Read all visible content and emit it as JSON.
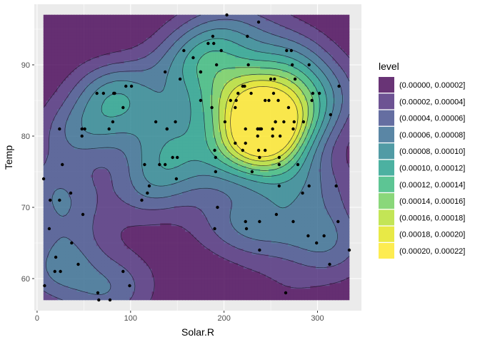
{
  "chart_data": {
    "type": "density-contour",
    "xlabel": "Solar.R",
    "ylabel": "Temp",
    "xlim": [
      -3,
      347
    ],
    "ylim": [
      55.5,
      98.5
    ],
    "x_ticks": [
      0,
      100,
      200,
      300
    ],
    "y_ticks": [
      60,
      70,
      80,
      90
    ],
    "grid": true,
    "legend": {
      "title": "level",
      "placement": "right",
      "entries": [
        {
          "label": "(0.00000, 0.00002]",
          "color": "#440154"
        },
        {
          "label": "(0.00002, 0.00004]",
          "color": "#482878"
        },
        {
          "label": "(0.00004, 0.00006]",
          "color": "#3E4A89"
        },
        {
          "label": "(0.00006, 0.00008]",
          "color": "#31688E"
        },
        {
          "label": "(0.00008, 0.00010]",
          "color": "#26828E"
        },
        {
          "label": "(0.00010, 0.00012]",
          "color": "#1F9E89"
        },
        {
          "label": "(0.00012, 0.00014]",
          "color": "#35B779"
        },
        {
          "label": "(0.00014, 0.00016]",
          "color": "#6DCD59"
        },
        {
          "label": "(0.00016, 0.00018]",
          "color": "#B4DE2C"
        },
        {
          "label": "(0.00018, 0.00020]",
          "color": "#E2E418"
        },
        {
          "label": "(0.00020, 0.00022]",
          "color": "#FDE725"
        }
      ]
    },
    "density_extent": {
      "x": [
        7,
        334
      ],
      "y": [
        57,
        97
      ]
    },
    "points": [
      [
        190,
        67
      ],
      [
        118,
        72
      ],
      [
        149,
        74
      ],
      [
        313,
        62
      ],
      [
        299,
        65
      ],
      [
        99,
        59
      ],
      [
        19,
        61
      ],
      [
        256,
        69
      ],
      [
        290,
        66
      ],
      [
        274,
        68
      ],
      [
        65,
        58
      ],
      [
        334,
        64
      ],
      [
        307,
        66
      ],
      [
        78,
        57
      ],
      [
        322,
        68
      ],
      [
        44,
        62
      ],
      [
        8,
        59
      ],
      [
        320,
        73
      ],
      [
        25,
        61
      ],
      [
        92,
        61
      ],
      [
        66,
        57
      ],
      [
        266,
        58
      ],
      [
        13,
        67
      ],
      [
        252,
        81
      ],
      [
        223,
        79
      ],
      [
        279,
        76
      ],
      [
        127,
        82
      ],
      [
        291,
        90
      ],
      [
        323,
        87
      ],
      [
        148,
        82
      ],
      [
        191,
        77
      ],
      [
        284,
        72
      ],
      [
        37,
        65
      ],
      [
        120,
        73
      ],
      [
        137,
        76
      ],
      [
        150,
        77
      ],
      [
        269,
        84
      ],
      [
        248,
        85
      ],
      [
        236,
        81
      ],
      [
        101,
        87
      ],
      [
        175,
        85
      ],
      [
        314,
        83
      ],
      [
        276,
        88
      ],
      [
        267,
        92
      ],
      [
        272,
        92
      ],
      [
        175,
        89
      ],
      [
        139,
        81
      ],
      [
        264,
        82
      ],
      [
        175,
        89
      ],
      [
        291,
        73
      ],
      [
        48,
        81
      ],
      [
        260,
        80
      ],
      [
        274,
        81
      ],
      [
        285,
        82
      ],
      [
        187,
        84
      ],
      [
        220,
        87
      ],
      [
        7,
        74
      ],
      [
        258,
        85
      ],
      [
        295,
        86
      ],
      [
        294,
        85
      ],
      [
        223,
        81
      ],
      [
        81,
        82
      ],
      [
        82,
        86
      ],
      [
        213,
        85
      ],
      [
        275,
        82
      ],
      [
        253,
        86
      ],
      [
        254,
        88
      ],
      [
        83,
        86
      ],
      [
        24,
        81
      ],
      [
        77,
        81
      ],
      [
        255,
        82
      ],
      [
        229,
        86
      ],
      [
        207,
        85
      ],
      [
        222,
        87
      ],
      [
        137,
        89
      ],
      [
        192,
        90
      ],
      [
        273,
        90
      ],
      [
        157,
        92
      ],
      [
        64,
        86
      ],
      [
        71,
        86
      ],
      [
        51,
        81
      ],
      [
        115,
        76
      ],
      [
        244,
        78
      ],
      [
        190,
        78
      ],
      [
        259,
        77
      ],
      [
        36,
        72
      ],
      [
        212,
        79
      ],
      [
        238,
        81
      ],
      [
        215,
        86
      ],
      [
        153,
        88
      ],
      [
        203,
        97
      ],
      [
        225,
        94
      ],
      [
        237,
        96
      ],
      [
        188,
        94
      ],
      [
        167,
        91
      ],
      [
        197,
        92
      ],
      [
        183,
        93
      ],
      [
        189,
        93
      ],
      [
        95,
        87
      ],
      [
        92,
        84
      ],
      [
        252,
        80
      ],
      [
        220,
        78
      ],
      [
        230,
        75
      ],
      [
        259,
        73
      ],
      [
        236,
        81
      ],
      [
        259,
        76
      ],
      [
        238,
        77
      ],
      [
        24,
        71
      ],
      [
        112,
        71
      ],
      [
        237,
        78
      ],
      [
        224,
        67
      ],
      [
        27,
        76
      ],
      [
        238,
        68
      ],
      [
        201,
        82
      ],
      [
        238,
        64
      ],
      [
        14,
        71
      ],
      [
        139,
        81
      ],
      [
        49,
        69
      ],
      [
        20,
        63
      ],
      [
        193,
        70
      ],
      [
        145,
        77
      ],
      [
        191,
        75
      ],
      [
        131,
        76
      ],
      [
        223,
        68
      ],
      [
        255,
        82
      ],
      [
        236,
        80
      ],
      [
        212,
        84
      ],
      [
        302,
        86
      ],
      [
        48,
        80
      ],
      [
        244,
        85
      ],
      [
        226,
        90
      ],
      [
        250,
        88
      ],
      [
        239,
        81
      ],
      [
        240,
        81
      ]
    ]
  }
}
